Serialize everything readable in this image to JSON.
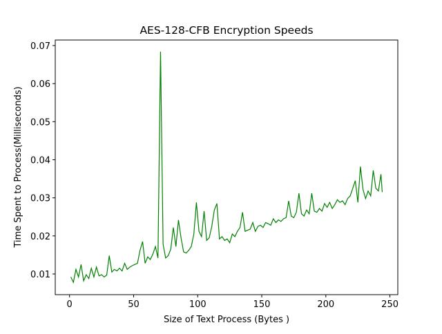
{
  "chart_data": {
    "type": "line",
    "title": "AES-128-CFB Encryption Speeds",
    "x_label": "Size of Text Process (Bytes )",
    "y_label": "Time Spent to Process(Milliseconds)",
    "x": [
      1,
      3,
      5,
      7,
      9,
      11,
      13,
      15,
      17,
      19,
      21,
      23,
      25,
      27,
      29,
      31,
      33,
      35,
      37,
      39,
      41,
      43,
      45,
      47,
      49,
      51,
      53,
      55,
      57,
      59,
      61,
      63,
      65,
      67,
      69,
      71,
      73,
      75,
      77,
      79,
      81,
      83,
      85,
      87,
      89,
      91,
      93,
      95,
      97,
      99,
      101,
      103,
      105,
      107,
      109,
      111,
      113,
      115,
      117,
      119,
      121,
      123,
      125,
      127,
      129,
      131,
      133,
      135,
      137,
      139,
      141,
      143,
      145,
      147,
      149,
      151,
      153,
      155,
      157,
      159,
      161,
      163,
      165,
      167,
      169,
      171,
      173,
      175,
      177,
      179,
      181,
      183,
      185,
      187,
      189,
      191,
      193,
      195,
      197,
      199,
      201,
      203,
      205,
      207,
      209,
      211,
      213,
      215,
      217,
      219,
      221,
      223,
      225,
      227,
      229,
      231,
      233,
      235,
      237,
      239,
      241,
      243,
      244
    ],
    "series": [
      {
        "color": "#008000",
        "values": [
          0.0092,
          0.0078,
          0.0112,
          0.0092,
          0.0125,
          0.0082,
          0.0098,
          0.0088,
          0.0115,
          0.0092,
          0.0118,
          0.0095,
          0.0098,
          0.0092,
          0.0097,
          0.0148,
          0.0105,
          0.0112,
          0.0108,
          0.0115,
          0.0108,
          0.0128,
          0.0112,
          0.0118,
          0.0122,
          0.0125,
          0.0128,
          0.0162,
          0.0185,
          0.0128,
          0.0145,
          0.0138,
          0.0152,
          0.0172,
          0.0142,
          0.0684,
          0.0178,
          0.0142,
          0.0148,
          0.0165,
          0.0222,
          0.0172,
          0.0242,
          0.0195,
          0.0158,
          0.0155,
          0.0162,
          0.0172,
          0.0205,
          0.0288,
          0.0212,
          0.0198,
          0.0265,
          0.0188,
          0.0195,
          0.0225,
          0.0268,
          0.0285,
          0.0192,
          0.0198,
          0.0188,
          0.0192,
          0.0182,
          0.0205,
          0.0198,
          0.0212,
          0.0222,
          0.0262,
          0.0212,
          0.0215,
          0.0218,
          0.0235,
          0.0212,
          0.0225,
          0.0228,
          0.0222,
          0.0235,
          0.0232,
          0.0228,
          0.0245,
          0.0235,
          0.0242,
          0.0238,
          0.0245,
          0.0248,
          0.0292,
          0.0252,
          0.0248,
          0.0262,
          0.0312,
          0.0258,
          0.0252,
          0.0268,
          0.0258,
          0.0312,
          0.0265,
          0.0262,
          0.0272,
          0.0265,
          0.0285,
          0.0275,
          0.0288,
          0.0272,
          0.0282,
          0.0295,
          0.0288,
          0.0292,
          0.0282,
          0.0298,
          0.0305,
          0.0325,
          0.0345,
          0.0288,
          0.0382,
          0.0322,
          0.0298,
          0.0318,
          0.0305,
          0.0372,
          0.0325,
          0.0318,
          0.0362,
          0.0315
        ]
      }
    ],
    "xlim": [
      -11.15,
      256.15
    ],
    "xticks": [
      0,
      50,
      100,
      150,
      200,
      250
    ],
    "ylim": [
      0.00456,
      0.07145
    ],
    "yticks": [
      0.01,
      0.02,
      0.03,
      0.04,
      0.05,
      0.06,
      0.07
    ]
  }
}
